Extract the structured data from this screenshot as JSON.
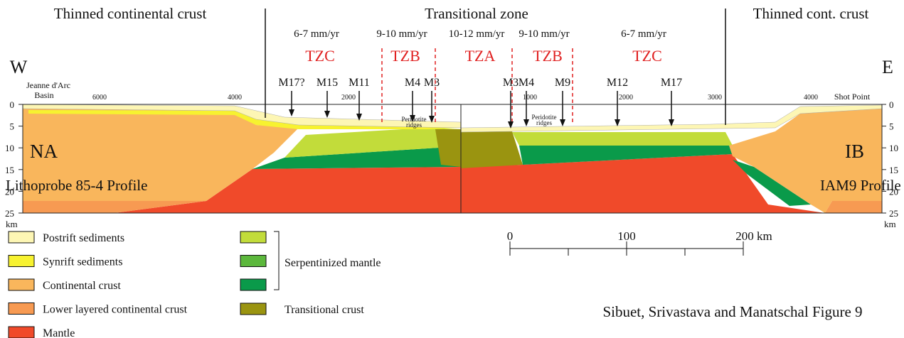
{
  "header": {
    "left": "Thinned continental crust",
    "center": "Transitional zone",
    "right": "Thinned cont. crust"
  },
  "rates": [
    "6-7 mm/yr",
    "9-10 mm/yr",
    "10-12 mm/yr",
    "9-10 mm/yr",
    "6-7 mm/yr"
  ],
  "zones": [
    "TZC",
    "TZB",
    "TZA",
    "TZB",
    "TZC"
  ],
  "directions": {
    "west": "W",
    "east": "E"
  },
  "basin_label": {
    "line1": "Jeanne d'Arc",
    "line2": "Basin"
  },
  "shot_points": {
    "left": [
      6000,
      4000,
      2000
    ],
    "right": [
      1000,
      2000,
      3000,
      4000
    ],
    "label": "Shot Point"
  },
  "anomalies": [
    "M17?",
    "M15",
    "M11",
    "M4",
    "M3",
    "M3",
    "M4",
    "M9",
    "M12",
    "M17"
  ],
  "ridge_labels": [
    {
      "line1": "Peridotite",
      "line2": "ridges"
    },
    {
      "line1": "Peridotite",
      "line2": "ridges"
    }
  ],
  "depth_ticks": [
    0,
    5,
    10,
    15,
    20,
    25
  ],
  "depth_unit": "km",
  "profiles": {
    "left": {
      "code": "NA",
      "name": "Lithoprobe 85-4 Profile"
    },
    "right": {
      "code": "IB",
      "name": "IAM9 Profile"
    }
  },
  "legend": [
    {
      "label": "Postrift sediments",
      "color": "#fdf6b4"
    },
    {
      "label": "Synrift sediments",
      "color": "#f7f230"
    },
    {
      "label": "Continental crust",
      "color": "#f9b65c"
    },
    {
      "label": "Lower layered continental crust",
      "color": "#f79a52"
    },
    {
      "label": "Mantle",
      "color": "#f04a2a"
    }
  ],
  "legend2": {
    "colors": [
      "#c2dc3a",
      "#5cb83c",
      "#0a9a4a"
    ],
    "label": "Serpentinized mantle",
    "transitional": {
      "label": "Transitional crust",
      "color": "#9a9410"
    }
  },
  "scale_bar": [
    "0",
    "100",
    "200 km"
  ],
  "caption": "Sibuet, Srivastava and Manatschal Figure 9"
}
